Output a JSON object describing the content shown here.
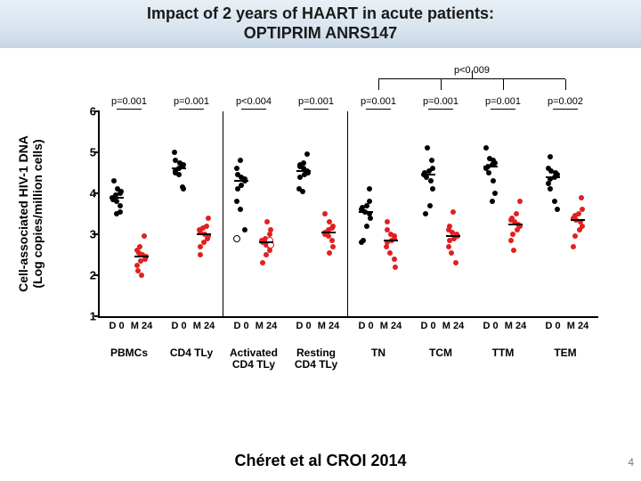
{
  "title_line1": "Impact of 2 years of HAART in acute patients:",
  "title_line2": "OPTIPRIM ANRS147",
  "title_fontsize": 18,
  "citation": "Chéret  et al CROI 2014",
  "page_number": "4",
  "yaxis_title": "Cell-associated HIV-1 DNA\n(Log copies/million cells)",
  "chart": {
    "ylim": [
      1,
      6
    ],
    "yticks": [
      1,
      2,
      3,
      4,
      5,
      6
    ],
    "plot_bg": "#ffffff",
    "color_d0": "#000000",
    "color_m24": "#e02020",
    "marker_size": 6,
    "median_width": 16,
    "top_pvalue": "p<0.009",
    "groups": [
      {
        "name": "PBMCs",
        "p": "p=0.001",
        "d0": [
          3.5,
          3.55,
          3.7,
          3.8,
          3.85,
          3.9,
          3.95,
          4.0,
          4.05,
          4.1,
          4.3
        ],
        "m24": [
          2.0,
          2.1,
          2.25,
          2.35,
          2.4,
          2.45,
          2.5,
          2.55,
          2.6,
          2.7,
          2.95
        ],
        "d0_median": 3.9,
        "m24_median": 2.45
      },
      {
        "name": "CD4 TLy",
        "p": "p=0.001",
        "d0": [
          4.1,
          4.15,
          4.45,
          4.5,
          4.55,
          4.6,
          4.65,
          4.7,
          4.75,
          4.8,
          5.0
        ],
        "m24": [
          2.5,
          2.7,
          2.8,
          2.9,
          2.95,
          3.0,
          3.05,
          3.1,
          3.15,
          3.2,
          3.4
        ],
        "d0_median": 4.6,
        "m24_median": 3.0
      },
      {
        "name": "Activated\nCD4 TLy",
        "p": "p<0.004",
        "d0": [
          3.1,
          3.6,
          3.8,
          4.1,
          4.2,
          4.3,
          4.35,
          4.4,
          4.45,
          4.6,
          4.8
        ],
        "m24": [
          2.3,
          2.5,
          2.6,
          2.7,
          2.75,
          2.8,
          2.85,
          2.9,
          3.0,
          3.1,
          3.3
        ],
        "d0_median": 4.3,
        "m24_median": 2.8,
        "d0_open": [
          2.9
        ],
        "m24_open": [
          2.85,
          2.75
        ]
      },
      {
        "name": "Resting\nCD4 TLy",
        "p": "p=0.001",
        "d0": [
          4.05,
          4.1,
          4.4,
          4.45,
          4.5,
          4.55,
          4.6,
          4.65,
          4.7,
          4.75,
          4.95
        ],
        "m24": [
          2.55,
          2.7,
          2.85,
          2.95,
          3.0,
          3.05,
          3.1,
          3.15,
          3.2,
          3.3,
          3.5
        ],
        "d0_median": 4.55,
        "m24_median": 3.05
      },
      {
        "name": "TN",
        "p": "p=0.001",
        "d0": [
          2.8,
          2.85,
          3.2,
          3.4,
          3.5,
          3.55,
          3.6,
          3.65,
          3.7,
          3.8,
          4.1
        ],
        "m24": [
          2.2,
          2.4,
          2.55,
          2.7,
          2.8,
          2.85,
          2.9,
          2.95,
          3.0,
          3.1,
          3.3
        ],
        "d0_median": 3.55,
        "m24_median": 2.85
      },
      {
        "name": "TCM",
        "p": "p=0.001",
        "d0": [
          3.5,
          3.7,
          4.1,
          4.3,
          4.4,
          4.45,
          4.5,
          4.55,
          4.6,
          4.8,
          5.1
        ],
        "m24": [
          2.3,
          2.55,
          2.7,
          2.85,
          2.9,
          2.95,
          3.0,
          3.05,
          3.1,
          3.2,
          3.55
        ],
        "d0_median": 4.45,
        "m24_median": 2.95
      },
      {
        "name": "TTM",
        "p": "p=0.001",
        "d0": [
          3.8,
          4.0,
          4.3,
          4.5,
          4.6,
          4.65,
          4.7,
          4.75,
          4.8,
          4.85,
          5.1
        ],
        "m24": [
          2.6,
          2.85,
          3.0,
          3.1,
          3.2,
          3.25,
          3.3,
          3.35,
          3.4,
          3.5,
          3.8
        ],
        "d0_median": 4.65,
        "m24_median": 3.25
      },
      {
        "name": "TEM",
        "p": "p=0.002",
        "d0": [
          3.6,
          3.8,
          4.1,
          4.25,
          4.35,
          4.4,
          4.45,
          4.5,
          4.55,
          4.6,
          4.9
        ],
        "m24": [
          2.7,
          2.95,
          3.1,
          3.2,
          3.3,
          3.35,
          3.4,
          3.45,
          3.5,
          3.6,
          3.9
        ],
        "d0_median": 4.4,
        "m24_median": 3.35
      }
    ],
    "vlines_after_groups": [
      2,
      4
    ],
    "top_bracket_over_groups": [
      5,
      6,
      7,
      8
    ]
  }
}
